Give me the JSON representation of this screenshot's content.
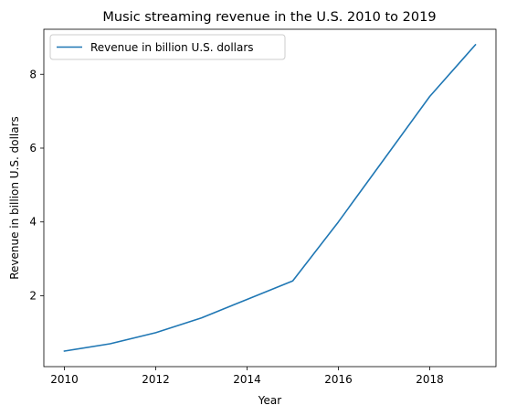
{
  "chart_data": {
    "type": "line",
    "title": "Music streaming revenue in the U.S. 2010 to 2019",
    "xlabel": "Year",
    "ylabel": "Revenue in billion U.S. dollars",
    "x": [
      2010,
      2011,
      2012,
      2013,
      2014,
      2015,
      2016,
      2017,
      2018,
      2019
    ],
    "series": [
      {
        "name": "Revenue in billion U.S. dollars",
        "values": [
          0.5,
          0.7,
          1.0,
          1.4,
          1.9,
          2.4,
          4.0,
          5.7,
          7.4,
          8.8
        ],
        "color": "#1f77b4"
      }
    ],
    "xticks": [
      2010,
      2012,
      2014,
      2016,
      2018
    ],
    "yticks": [
      2,
      4,
      6,
      8
    ],
    "xlim": [
      2009.55,
      2019.45
    ],
    "ylim": [
      0.08,
      9.22
    ],
    "grid": false,
    "legend_position": "top-left"
  }
}
